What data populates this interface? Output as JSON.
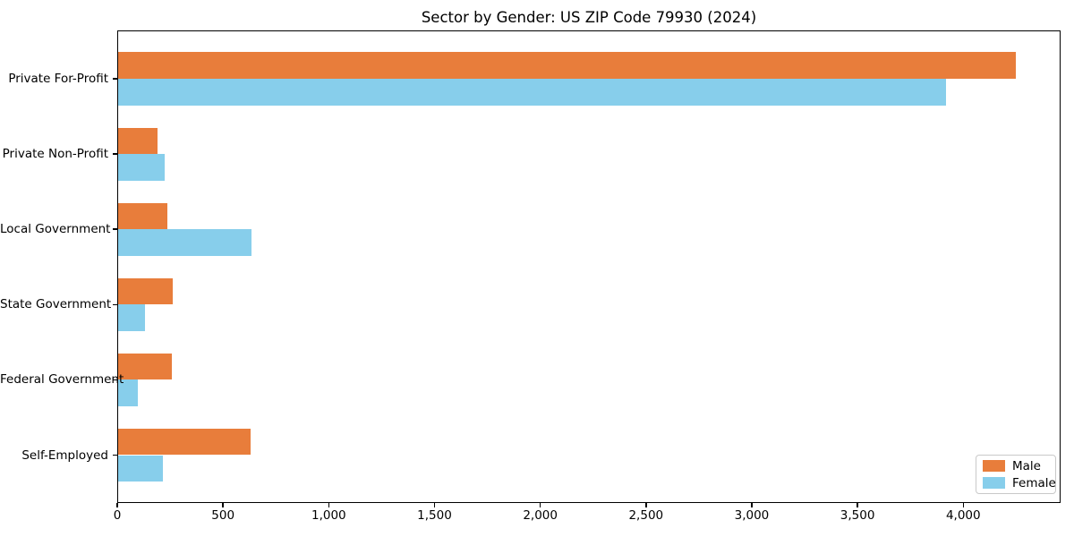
{
  "chart_data": {
    "type": "bar",
    "orientation": "horizontal",
    "title": "Sector by Gender: US ZIP Code 79930 (2024)",
    "categories": [
      "Private For-Profit",
      "Private Non-Profit",
      "Local Government",
      "State Government",
      "Federal Government",
      "Self-Employed"
    ],
    "series": [
      {
        "name": "Male",
        "color": "#e87d3b",
        "values": [
          4250,
          190,
          237,
          264,
          258,
          632
        ]
      },
      {
        "name": "Female",
        "color": "#87ceeb",
        "values": [
          3920,
          224,
          635,
          131,
          97,
          217
        ]
      }
    ],
    "xlabel": "",
    "ylabel": "",
    "xlim": [
      0,
      4460
    ],
    "xticks": [
      0,
      500,
      1000,
      1500,
      2000,
      2500,
      3000,
      3500,
      4000
    ],
    "xtick_labels": [
      "0",
      "500",
      "1,000",
      "1,500",
      "2,000",
      "2,500",
      "3,000",
      "3,500",
      "4,000"
    ],
    "grid": false,
    "legend": {
      "position": "lower-right",
      "entries": [
        {
          "label": "Male",
          "color": "#e87d3b"
        },
        {
          "label": "Female",
          "color": "#87ceeb"
        }
      ]
    },
    "colors": {
      "axis": "#000000",
      "background": "#ffffff",
      "text": "#000000"
    }
  }
}
